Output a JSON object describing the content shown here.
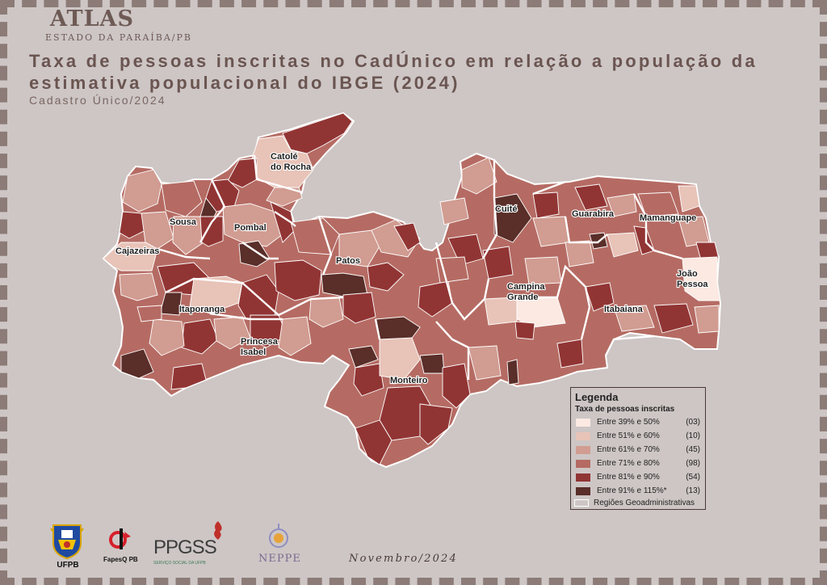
{
  "header": {
    "atlas": "ATLAS",
    "state": "ESTADO DA PARAÍBA/PB",
    "title": "Taxa de pessoas inscritas no CadÚnico em relação a população da estimativa populacional do IBGE (2024)",
    "subtitle": "Cadastro Único/2024"
  },
  "map": {
    "colors": {
      "c1": "#fbe9e2",
      "c2": "#e8c3b8",
      "c3": "#d19c91",
      "c4": "#b56b63",
      "c5": "#913534",
      "c6": "#5a2e29",
      "border": "#ffffff",
      "background": "#cdc6c5"
    },
    "cities": [
      {
        "label": "Catolé do Rocha"
      },
      {
        "label": "Sousa"
      },
      {
        "label": "Pombal"
      },
      {
        "label": "Cajazeiras"
      },
      {
        "label": "Patos"
      },
      {
        "label": "Itaporanga"
      },
      {
        "label": "Princesa Isabel"
      },
      {
        "label": "Monteiro"
      },
      {
        "label": "Cuité"
      },
      {
        "label": "Guarabira"
      },
      {
        "label": "Mamanguape"
      },
      {
        "label": "João Pessoa"
      },
      {
        "label": "Campina Grande"
      },
      {
        "label": "Itabaiana"
      }
    ]
  },
  "legend": {
    "title": "Legenda",
    "subtitle": "Taxa de pessoas inscritas",
    "classes": [
      {
        "label": "Entre 39% e 50%",
        "count": "(03)",
        "color": "#fbe9e2"
      },
      {
        "label": "Entre 51% e 60%",
        "count": "(10)",
        "color": "#e8c3b8"
      },
      {
        "label": "Entre 61% e 70%",
        "count": "(45)",
        "color": "#d19c91"
      },
      {
        "label": "Entre 71% e 80%",
        "count": "(98)",
        "color": "#b56b63"
      },
      {
        "label": "Entre 81% e 90%",
        "count": "(54)",
        "color": "#913534"
      },
      {
        "label": "Entre 91% e 115%*",
        "count": "(13)",
        "color": "#5a2e29"
      }
    ],
    "regions_label": "Regiões Geoadministrativas"
  },
  "logos": {
    "ufpb": "UFPB",
    "fapesq": "FapesQ PB",
    "ppgss": "PPGSS",
    "ppgss_caption": "SERVIÇO SOCIAL DA UFPB",
    "neppe": "NEPPE"
  },
  "footer": {
    "date": "Novembro/2024"
  }
}
